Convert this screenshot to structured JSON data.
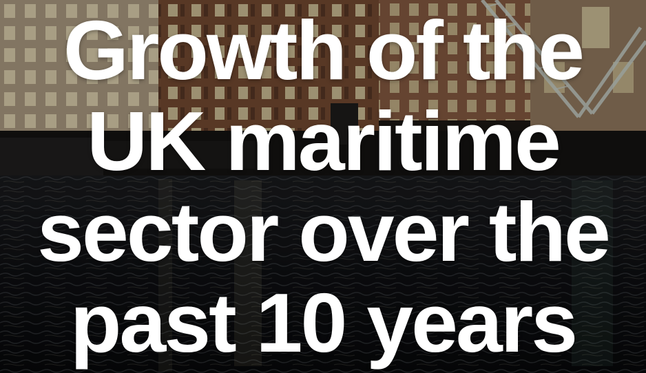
{
  "title_lines": [
    "Growth of the",
    "UK maritime",
    "sector over the",
    "past 10 years"
  ],
  "colors": {
    "text": "#ffffff",
    "sky": "#1a1714",
    "water": "#0c0d10",
    "building_brick": "#8a5a3c",
    "building_stone": "#b7a58a",
    "window_light": "#e8d9b0",
    "crane": "#cfd8d2"
  }
}
